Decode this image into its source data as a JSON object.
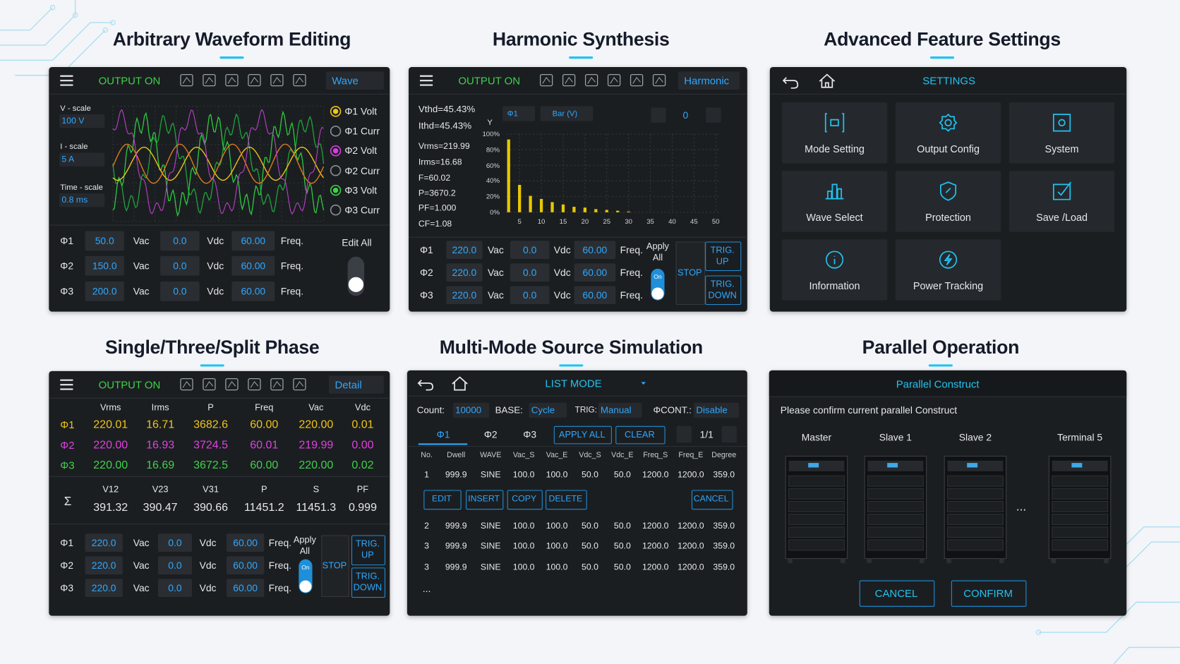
{
  "waveform": {
    "title": "Arbitrary Waveform Editing",
    "status": "OUTPUT ON",
    "menu": "Wave",
    "scales": [
      {
        "label": "V - scale",
        "value": "100 V"
      },
      {
        "label": "I - scale",
        "value": "5 A"
      },
      {
        "label": "Time - scale",
        "value": "0.8 ms"
      }
    ],
    "channels": [
      "Φ1 Volt",
      "Φ1 Curr",
      "Φ2 Volt",
      "Φ2 Curr",
      "Φ3 Volt",
      "Φ3 Curr"
    ],
    "rows": [
      [
        "Φ1",
        "50.0",
        "Vac",
        "0.0",
        "Vdc",
        "60.00",
        "Freq."
      ],
      [
        "Φ2",
        "150.0",
        "Vac",
        "0.0",
        "Vdc",
        "60.00",
        "Freq."
      ],
      [
        "Φ3",
        "200.0",
        "Vac",
        "0.0",
        "Vdc",
        "60.00",
        "Freq."
      ]
    ],
    "edit_all": "Edit All"
  },
  "harmonic": {
    "title": "Harmonic Synthesis",
    "status": "OUTPUT ON",
    "menu": "Harmonic",
    "stats": [
      "Vthd=45.43%",
      "Ithd=45.43%",
      "Vrms=219.99",
      "Irms=16.68",
      "F=60.02",
      "P=3670.2",
      "PF=1.000",
      "CF=1.08"
    ],
    "phase": "Φ1",
    "mode": "Bar (V)",
    "order": "0",
    "chart_data": {
      "type": "bar",
      "y_label": "Y",
      "x": [
        2.5,
        5,
        7.5,
        10,
        12.5,
        15,
        17.5,
        20,
        22.5,
        25,
        27.5,
        30
      ],
      "values": [
        93,
        35,
        21,
        17,
        13,
        10,
        7,
        6,
        4,
        3,
        2,
        1
      ],
      "color": "#e8c800",
      "xlim": [
        2,
        51
      ],
      "ylim": [
        0,
        100
      ],
      "xticks": [
        5,
        10,
        15,
        20,
        25,
        30,
        35,
        40,
        45,
        50
      ],
      "yticks": [
        {
          "value": 100,
          "label": "100%"
        },
        {
          "value": 80,
          "label": "80%"
        },
        {
          "value": 60,
          "label": "60%"
        },
        {
          "value": 40,
          "label": "40%"
        },
        {
          "value": 20,
          "label": "20%"
        },
        {
          "value": 0,
          "label": "0%"
        }
      ],
      "grid": true
    },
    "rows": [
      [
        "Φ1",
        "220.0",
        "Vac",
        "0.0",
        "Vdc",
        "60.00",
        "Freq."
      ],
      [
        "Φ2",
        "220.0",
        "Vac",
        "0.0",
        "Vdc",
        "60.00",
        "Freq."
      ],
      [
        "Φ3",
        "220.0",
        "Vac",
        "0.0",
        "Vdc",
        "60.00",
        "Freq."
      ]
    ],
    "apply_all": "Apply All",
    "toggle": "On",
    "stop": "STOP",
    "trig_up": "TRIG. UP",
    "trig_down": "TRIG. DOWN"
  },
  "settings": {
    "title": "Advanced Feature Settings",
    "header": "SETTINGS",
    "tiles": [
      "Mode Setting",
      "Output Config",
      "System",
      "Wave Select",
      "Protection",
      "Save /Load",
      "Information",
      "Power Tracking"
    ]
  },
  "phase": {
    "title": "Single/Three/Split Phase",
    "status": "OUTPUT ON",
    "menu": "Detail",
    "headers": [
      "Vrms",
      "Irms",
      "P",
      "Freq",
      "Vac",
      "Vdc"
    ],
    "table": [
      {
        "label": "Φ1",
        "values": [
          "220.01",
          "16.71",
          "3682.6",
          "60.00",
          "220.00",
          "0.01"
        ]
      },
      {
        "label": "Φ2",
        "values": [
          "220.00",
          "16.93",
          "3724.5",
          "60.01",
          "219.99",
          "0.00"
        ]
      },
      {
        "label": "Φ3",
        "values": [
          "220.00",
          "16.69",
          "3672.5",
          "60.00",
          "220.00",
          "0.02"
        ]
      }
    ],
    "sum": {
      "symbol": "Σ",
      "headers": [
        "V12",
        "V23",
        "V31",
        "P",
        "S",
        "PF"
      ],
      "values": [
        "391.32",
        "390.47",
        "390.66",
        "11451.2",
        "11451.3",
        "0.999"
      ]
    },
    "rows": [
      [
        "Φ1",
        "220.0",
        "Vac",
        "0.0",
        "Vdc",
        "60.00",
        "Freq."
      ],
      [
        "Φ2",
        "220.0",
        "Vac",
        "0.0",
        "Vdc",
        "60.00",
        "Freq."
      ],
      [
        "Φ3",
        "220.0",
        "Vac",
        "0.0",
        "Vdc",
        "60.00",
        "Freq."
      ]
    ],
    "apply_all": "Apply All",
    "toggle": "On",
    "stop": "STOP",
    "trig_up": "TRIG. UP",
    "trig_down": "TRIG. DOWN"
  },
  "multimode": {
    "title": "Multi-Mode Source Simulation",
    "header": "LIST MODE",
    "fields": [
      {
        "label": "Count:",
        "value": "10000"
      },
      {
        "label": "BASE:",
        "value": "Cycle"
      },
      {
        "label": "TRIG:",
        "value": "Manual"
      },
      {
        "label": "ΦCONT.:",
        "value": "Disable"
      }
    ],
    "tabs": [
      "Φ1",
      "Φ2",
      "Φ3"
    ],
    "apply_all": "APPLY ALL",
    "clear": "CLEAR",
    "page": "1/1",
    "columns": [
      "No.",
      "Dwell",
      "WAVE",
      "Vac_S",
      "Vac_E",
      "Vdc_S",
      "Vdc_E",
      "Freq_S",
      "Freq_E",
      "Degree"
    ],
    "rows": [
      [
        "1",
        "999.9",
        "SINE",
        "100.0",
        "100.0",
        "50.0",
        "50.0",
        "1200.0",
        "1200.0",
        "359.0"
      ],
      [
        "2",
        "999.9",
        "SINE",
        "100.0",
        "100.0",
        "50.0",
        "50.0",
        "1200.0",
        "1200.0",
        "359.0"
      ],
      [
        "3",
        "999.9",
        "SINE",
        "100.0",
        "100.0",
        "50.0",
        "50.0",
        "1200.0",
        "1200.0",
        "359.0"
      ],
      [
        "3",
        "999.9",
        "SINE",
        "100.0",
        "100.0",
        "50.0",
        "50.0",
        "1200.0",
        "1200.0",
        "359.0"
      ]
    ],
    "actions": [
      "EDIT",
      "INSERT",
      "COPY",
      "DELETE"
    ],
    "cancel": "CANCEL",
    "more": "..."
  },
  "parallel": {
    "title": "Parallel Operation",
    "header": "Parallel Construct",
    "prompt": "Please confirm current parallel Construct",
    "units": [
      "Master",
      "Slave 1",
      "Slave 2",
      "Terminal 5"
    ],
    "more": "...",
    "cancel": "CANCEL",
    "confirm": "CONFIRM"
  }
}
